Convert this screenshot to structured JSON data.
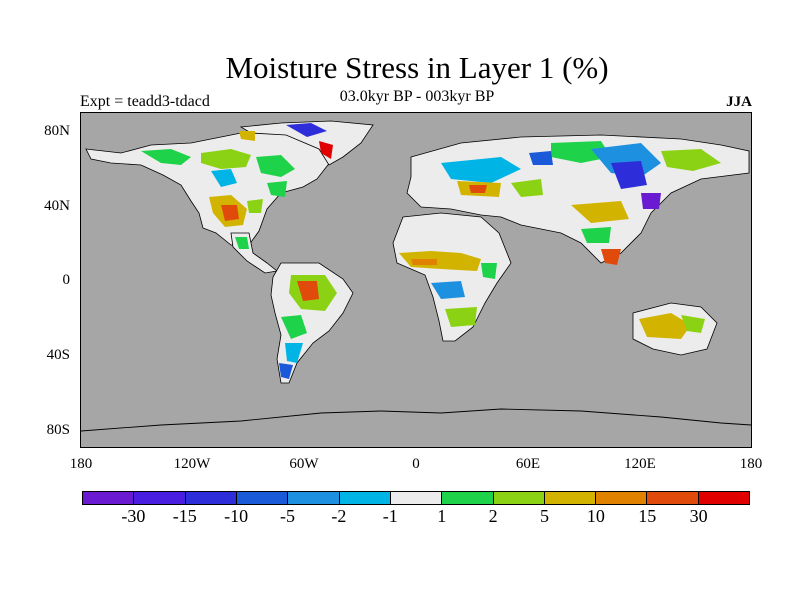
{
  "header": {
    "title": "Moisture Stress in Layer 1 (%)",
    "subtitle": "03.0kyr BP - 003kyr BP",
    "experiment": "Expt = teadd3-tdacd",
    "season": "JJA"
  },
  "axes": {
    "y_ticks": [
      "80N",
      "40N",
      "0",
      "40S",
      "80S"
    ],
    "x_ticks": [
      "180",
      "120W",
      "60W",
      "0",
      "60E",
      "120E",
      "180"
    ]
  },
  "colorbar": {
    "labels": [
      "-30",
      "-15",
      "-10",
      "-5",
      "-2",
      "-1",
      "1",
      "2",
      "5",
      "10",
      "15",
      "30"
    ],
    "colors": [
      "#6a1ad0",
      "#4a1ee0",
      "#2d2dd9",
      "#1a5ad8",
      "#1e90e0",
      "#00b4e6",
      "#ececec",
      "#1ed24a",
      "#8cd214",
      "#d2b400",
      "#e08200",
      "#e04a0a",
      "#e00000"
    ]
  },
  "colors": {
    "ocean": "#a6a6a6",
    "land_neutral": "#ececec"
  }
}
